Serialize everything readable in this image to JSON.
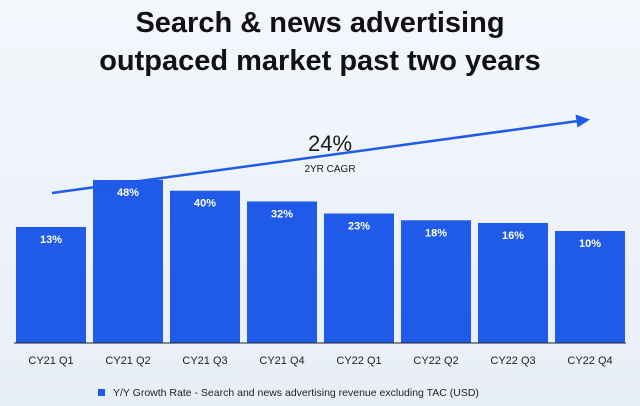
{
  "title_lines": [
    "Search & news advertising",
    "outpaced market past two years"
  ],
  "colors": {
    "bar": "#1f5ae8",
    "trend_arrow": "#1f5ae8",
    "axis": "#222222"
  },
  "annotation": {
    "value": "24%",
    "caption": "2YR CAGR"
  },
  "chart_data": {
    "type": "bar",
    "title": "Search & news advertising outpaced market past two years",
    "categories": [
      "CY21 Q1",
      "CY21 Q2",
      "CY21 Q3",
      "CY21 Q4",
      "CY22 Q1",
      "CY22 Q2",
      "CY22 Q3",
      "CY22 Q4"
    ],
    "series": [
      {
        "name": "Y/Y Growth Rate - Search and news advertising revenue excluding TAC (USD)",
        "values": [
          13,
          48,
          40,
          32,
          23,
          18,
          16,
          10
        ],
        "labels": [
          "13%",
          "48%",
          "40%",
          "32%",
          "23%",
          "18%",
          "16%",
          "10%"
        ]
      }
    ],
    "annotations": [
      {
        "text": "24%",
        "subtext": "2YR CAGR",
        "shape": "upward trend arrow"
      }
    ],
    "legend_position": "bottom",
    "grid": false
  }
}
